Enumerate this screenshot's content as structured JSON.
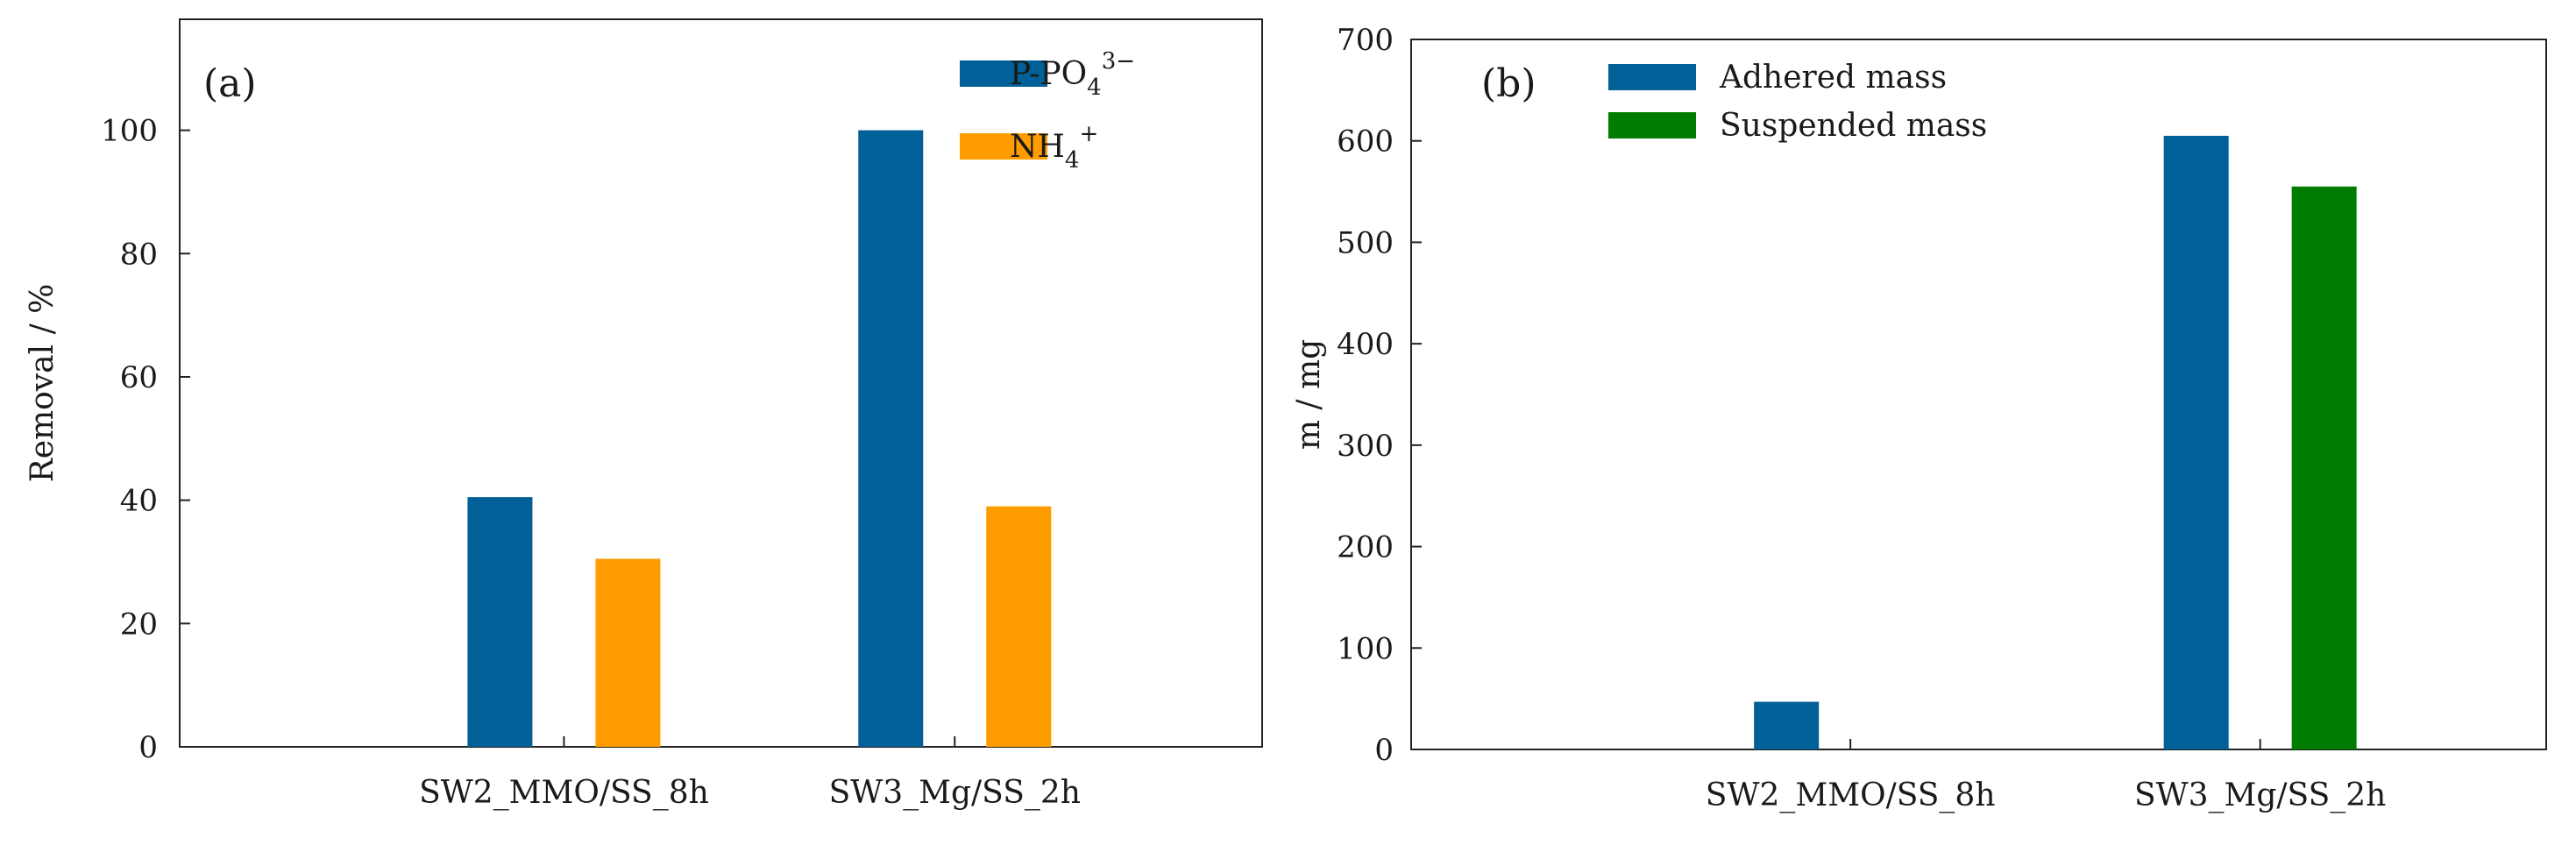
{
  "colors": {
    "blue": "#006097",
    "orange": "#ff9c00",
    "green": "#007d00",
    "axis": "#222222"
  },
  "chart_data": [
    {
      "type": "bar",
      "panel_label": "(a)",
      "title": "",
      "xlabel": "",
      "ylabel": "Removal / %",
      "ylim": [
        0,
        118
      ],
      "yticks": [
        0,
        20,
        40,
        60,
        80,
        100
      ],
      "ytick_labels": [
        "0",
        "20",
        "40",
        "60",
        "80",
        "100"
      ],
      "categories": [
        "SW2_MMO/SS_8h",
        "SW3_Mg/SS_2h"
      ],
      "legend_position": "top-right",
      "series": [
        {
          "name": "P-PO43−",
          "legend_main": "P-PO",
          "legend_sub": "4",
          "legend_sup": "3−",
          "color": "#006097",
          "values": [
            40.5,
            100
          ]
        },
        {
          "name": "NH4+",
          "legend_main": "NH",
          "legend_sub": "4",
          "legend_sup": "+",
          "color": "#ff9c00",
          "values": [
            30.5,
            39
          ]
        }
      ]
    },
    {
      "type": "bar",
      "panel_label": "(b)",
      "title": "",
      "xlabel": "",
      "ylabel": "m / mg",
      "ylim": [
        0,
        700
      ],
      "yticks": [
        0,
        100,
        200,
        300,
        400,
        500,
        600,
        700
      ],
      "ytick_labels": [
        "0",
        "100",
        "200",
        "300",
        "400",
        "500",
        "600",
        "700"
      ],
      "categories": [
        "SW2_MMO/SS_8h",
        "SW3_Mg/SS_2h"
      ],
      "legend_position": "top-left",
      "series": [
        {
          "name": "Adhered mass",
          "legend_main": "Adhered mass",
          "legend_sub": "",
          "legend_sup": "",
          "color": "#006097",
          "values": [
            47,
            605
          ]
        },
        {
          "name": "Suspended mass",
          "legend_main": "Suspended mass",
          "legend_sub": "",
          "legend_sup": "",
          "color": "#007d00",
          "values": [
            0,
            555
          ]
        }
      ]
    }
  ]
}
